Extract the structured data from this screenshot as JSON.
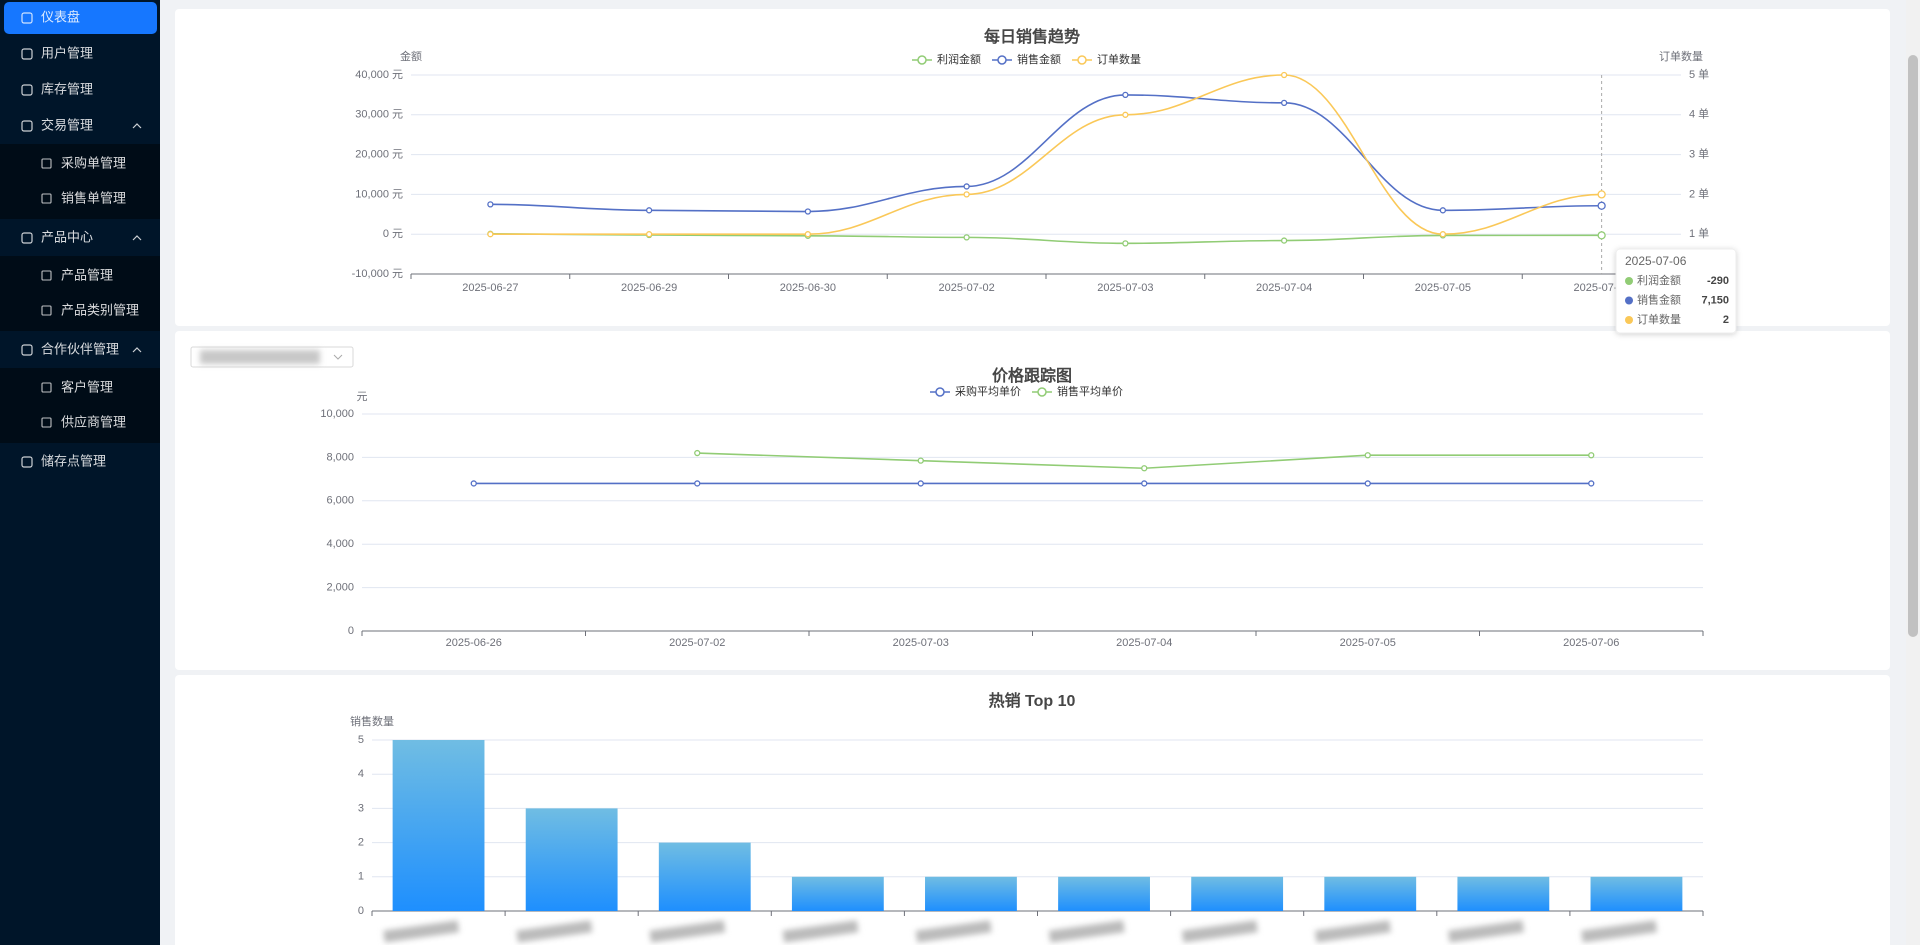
{
  "sidebar": {
    "menu": [
      {
        "label": "仪表盘",
        "active": true
      },
      {
        "label": "用户管理"
      },
      {
        "label": "库存管理"
      },
      {
        "label": "交易管理",
        "children": [
          {
            "label": "采购单管理"
          },
          {
            "label": "销售单管理"
          }
        ]
      },
      {
        "label": "产品中心",
        "children": [
          {
            "label": "产品管理"
          },
          {
            "label": "产品类别管理"
          }
        ]
      },
      {
        "label": "合作伙伴管理",
        "children": [
          {
            "label": "客户管理"
          },
          {
            "label": "供应商管理"
          }
        ]
      },
      {
        "label": "储存点管理"
      }
    ]
  },
  "chart_data": [
    {
      "type": "line",
      "title": "每日销售趋势",
      "smooth": true,
      "y_label": "金额",
      "y2_label": "订单数量",
      "categories": [
        "2025-06-27",
        "2025-06-29",
        "2025-06-30",
        "2025-07-02",
        "2025-07-03",
        "2025-07-04",
        "2025-07-05",
        "2025-07-06"
      ],
      "series": [
        {
          "name": "利润金额",
          "color": "#91cc75",
          "values": [
            100,
            -200,
            -400,
            -800,
            -2300,
            -1600,
            -300,
            -290
          ]
        },
        {
          "name": "销售金额",
          "color": "#5470c6",
          "values": [
            7500,
            6000,
            5700,
            12000,
            35000,
            33000,
            6000,
            7150
          ],
          "value_labels": [
            null,
            null,
            null,
            null,
            null,
            null,
            null,
            "7,150"
          ]
        },
        {
          "name": "订单数量",
          "color": "#fac858",
          "axis": "y2",
          "values": [
            1,
            1,
            1,
            2,
            4,
            5,
            1,
            2
          ]
        }
      ],
      "ylim": [
        -10000,
        40000
      ],
      "yticks": [
        {
          "value": -10000,
          "label": "-10,000 元"
        },
        {
          "value": 0,
          "label": "0 元"
        },
        {
          "value": 10000,
          "label": "10,000 元"
        },
        {
          "value": 20000,
          "label": "20,000 元"
        },
        {
          "value": 30000,
          "label": "30,000 元"
        },
        {
          "value": 40000,
          "label": "40,000 元"
        }
      ],
      "y2lim": [
        0,
        5
      ],
      "y2ticks": [
        {
          "value": 1,
          "label": "1 单"
        },
        {
          "value": 2,
          "label": "2 单"
        },
        {
          "value": 3,
          "label": "3 单"
        },
        {
          "value": 4,
          "label": "4 单"
        },
        {
          "value": 5,
          "label": "5 单"
        }
      ],
      "grid": true,
      "legend": "top"
    },
    {
      "type": "line",
      "title": "价格跟踪图",
      "smooth": false,
      "y_label": "元",
      "categories": [
        "2025-06-26",
        "2025-07-02",
        "2025-07-03",
        "2025-07-04",
        "2025-07-05",
        "2025-07-06"
      ],
      "series": [
        {
          "name": "采购平均单价",
          "color": "#5470c6",
          "values": [
            6800,
            6800,
            6800,
            6800,
            6800,
            6800
          ]
        },
        {
          "name": "销售平均单价",
          "color": "#91cc75",
          "values": [
            null,
            8200,
            7850,
            7500,
            8100,
            8100
          ]
        }
      ],
      "ylim": [
        0,
        10000
      ],
      "yticks": [
        0,
        {
          "value": 2000,
          "label": "2,000"
        },
        {
          "value": 4000,
          "label": "4,000"
        },
        {
          "value": 6000,
          "label": "6,000"
        },
        {
          "value": 8000,
          "label": "8,000"
        },
        {
          "value": 10000,
          "label": "10,000"
        }
      ],
      "grid": true,
      "legend": "top"
    },
    {
      "type": "bar",
      "title": "热销 Top 10",
      "y_label": "销售数量",
      "categories": [
        null,
        null,
        null,
        null,
        null,
        null,
        null,
        null,
        null,
        null
      ],
      "values": [
        5,
        3,
        2,
        1,
        1,
        1,
        1,
        1,
        1,
        1
      ],
      "colors": [
        "#70bde3",
        "#1e8ffe"
      ],
      "ylim": [
        0,
        5
      ],
      "yticks": [
        0,
        1,
        2,
        3,
        4,
        5
      ],
      "grid": true
    }
  ]
}
